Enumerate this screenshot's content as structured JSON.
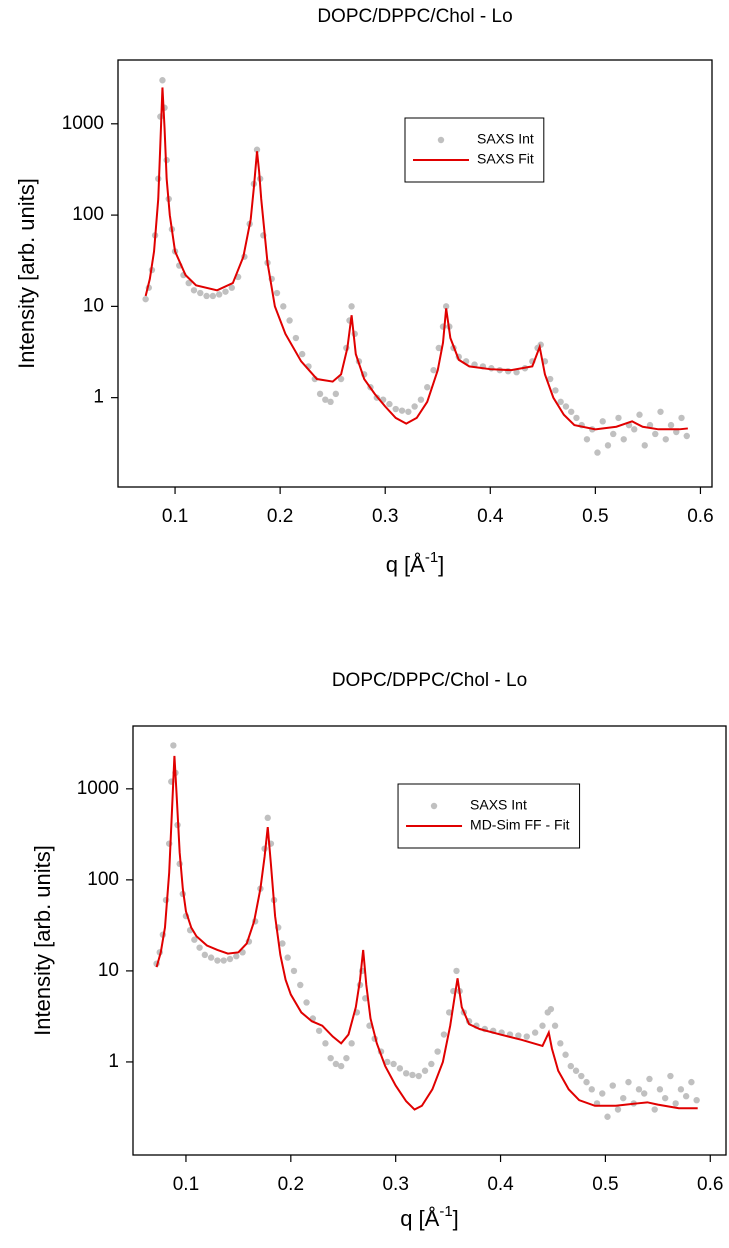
{
  "chart_data": [
    {
      "type": "scatter",
      "title": "DOPC/DPPC/Chol - Lo",
      "xlabel": [
        "q [Å",
        "-1",
        "]"
      ],
      "ylabel": "Intensity [arb. units]",
      "xlim": [
        0.0457,
        0.611
      ],
      "ylim": [
        0.105,
        5000
      ],
      "ylog": true,
      "xticks": [
        0.1,
        0.2,
        0.3,
        0.4,
        0.5,
        0.6
      ],
      "yticks": [
        1,
        10,
        100,
        1000
      ],
      "legend": "upper center",
      "series": [
        {
          "name": "SAXS Int",
          "color": "#c0c0c0",
          "mode": "markers",
          "x": [
            0.072,
            0.075,
            0.078,
            0.081,
            0.084,
            0.086,
            0.088,
            0.09,
            0.092,
            0.094,
            0.097,
            0.1,
            0.104,
            0.108,
            0.113,
            0.118,
            0.124,
            0.13,
            0.136,
            0.142,
            0.148,
            0.154,
            0.16,
            0.166,
            0.171,
            0.175,
            0.178,
            0.181,
            0.184,
            0.188,
            0.192,
            0.197,
            0.203,
            0.209,
            0.215,
            0.221,
            0.227,
            0.233,
            0.238,
            0.243,
            0.248,
            0.253,
            0.258,
            0.263,
            0.266,
            0.268,
            0.271,
            0.275,
            0.28,
            0.286,
            0.292,
            0.298,
            0.304,
            0.31,
            0.316,
            0.322,
            0.328,
            0.334,
            0.34,
            0.346,
            0.351,
            0.355,
            0.358,
            0.361,
            0.365,
            0.37,
            0.377,
            0.385,
            0.393,
            0.401,
            0.409,
            0.417,
            0.425,
            0.433,
            0.44,
            0.445,
            0.448,
            0.452,
            0.457,
            0.462,
            0.467,
            0.472,
            0.477,
            0.482,
            0.487,
            0.492,
            0.497,
            0.502,
            0.507,
            0.512,
            0.517,
            0.522,
            0.527,
            0.532,
            0.537,
            0.542,
            0.547,
            0.552,
            0.557,
            0.562,
            0.567,
            0.572,
            0.577,
            0.582,
            0.587
          ],
          "values": [
            12,
            16,
            25,
            60,
            250,
            1200,
            3000,
            1500,
            400,
            150,
            70,
            40,
            28,
            22,
            18,
            15,
            14,
            13,
            13,
            13.5,
            14.5,
            16,
            21,
            35,
            80,
            220,
            520,
            250,
            60,
            30,
            20,
            14,
            10,
            7,
            4.5,
            3,
            2.2,
            1.6,
            1.1,
            0.95,
            0.9,
            1.1,
            1.6,
            3.5,
            7,
            10,
            5,
            2.5,
            1.8,
            1.3,
            1.0,
            0.95,
            0.85,
            0.75,
            0.72,
            0.7,
            0.8,
            0.95,
            1.3,
            2,
            3.5,
            6,
            10,
            6,
            3.5,
            2.8,
            2.5,
            2.3,
            2.2,
            2.1,
            2.0,
            1.95,
            1.9,
            2.1,
            2.5,
            3.5,
            3.8,
            2.5,
            1.6,
            1.2,
            0.9,
            0.8,
            0.7,
            0.6,
            0.5,
            0.35,
            0.45,
            0.25,
            0.55,
            0.3,
            0.4,
            0.6,
            0.35,
            0.5,
            0.45,
            0.65,
            0.3,
            0.5,
            0.4,
            0.7,
            0.35,
            0.5,
            0.42,
            0.6,
            0.38
          ]
        },
        {
          "name": "SAXS Fit",
          "color": "#e00000",
          "mode": "lines",
          "x": [
            0.072,
            0.076,
            0.08,
            0.084,
            0.086,
            0.088,
            0.09,
            0.092,
            0.095,
            0.1,
            0.11,
            0.12,
            0.14,
            0.155,
            0.165,
            0.172,
            0.175,
            0.178,
            0.18,
            0.182,
            0.188,
            0.195,
            0.205,
            0.22,
            0.235,
            0.25,
            0.258,
            0.264,
            0.268,
            0.272,
            0.28,
            0.29,
            0.3,
            0.31,
            0.32,
            0.33,
            0.34,
            0.35,
            0.355,
            0.358,
            0.362,
            0.37,
            0.38,
            0.4,
            0.42,
            0.44,
            0.447,
            0.452,
            0.46,
            0.47,
            0.48,
            0.5,
            0.52,
            0.535,
            0.545,
            0.56,
            0.58,
            0.588
          ],
          "values": [
            13,
            20,
            40,
            150,
            600,
            2500,
            900,
            250,
            100,
            40,
            22,
            17,
            15,
            18,
            35,
            90,
            200,
            500,
            300,
            150,
            30,
            10,
            5,
            2.5,
            1.6,
            1.5,
            1.8,
            3.5,
            8,
            3,
            1.6,
            1.1,
            0.8,
            0.6,
            0.52,
            0.6,
            0.9,
            2,
            4,
            9.5,
            4.5,
            2.6,
            2.2,
            2.05,
            2.0,
            2.2,
            3.6,
            1.8,
            1.0,
            0.65,
            0.5,
            0.45,
            0.48,
            0.55,
            0.48,
            0.45,
            0.45,
            0.46
          ]
        }
      ]
    },
    {
      "type": "scatter",
      "title": "DOPC/DPPC/Chol - Lo",
      "xlabel": [
        "q [Å",
        "-1",
        "]"
      ],
      "ylabel": "Intensity [arb. units]",
      "xlim": [
        0.0495,
        0.615
      ],
      "ylim": [
        0.095,
        4900
      ],
      "ylog": true,
      "xticks": [
        0.1,
        0.2,
        0.3,
        0.4,
        0.5,
        0.6
      ],
      "yticks": [
        1,
        10,
        100,
        1000
      ],
      "legend": "upper center",
      "series": [
        {
          "name": "SAXS Int",
          "color": "#c0c0c0",
          "mode": "markers",
          "x": [
            0.072,
            0.075,
            0.078,
            0.081,
            0.084,
            0.086,
            0.088,
            0.09,
            0.092,
            0.094,
            0.097,
            0.1,
            0.104,
            0.108,
            0.113,
            0.118,
            0.124,
            0.13,
            0.136,
            0.142,
            0.148,
            0.154,
            0.16,
            0.166,
            0.171,
            0.175,
            0.178,
            0.181,
            0.184,
            0.188,
            0.192,
            0.197,
            0.203,
            0.209,
            0.215,
            0.221,
            0.227,
            0.233,
            0.238,
            0.243,
            0.248,
            0.253,
            0.258,
            0.263,
            0.266,
            0.268,
            0.271,
            0.275,
            0.28,
            0.286,
            0.292,
            0.298,
            0.304,
            0.31,
            0.316,
            0.322,
            0.328,
            0.334,
            0.34,
            0.346,
            0.351,
            0.355,
            0.358,
            0.361,
            0.365,
            0.37,
            0.377,
            0.385,
            0.393,
            0.401,
            0.409,
            0.417,
            0.425,
            0.433,
            0.44,
            0.445,
            0.448,
            0.452,
            0.457,
            0.462,
            0.467,
            0.472,
            0.477,
            0.482,
            0.487,
            0.492,
            0.497,
            0.502,
            0.507,
            0.512,
            0.517,
            0.522,
            0.527,
            0.532,
            0.537,
            0.542,
            0.547,
            0.552,
            0.557,
            0.562,
            0.567,
            0.572,
            0.577,
            0.582,
            0.587
          ],
          "values": [
            12,
            16,
            25,
            60,
            250,
            1200,
            3000,
            1500,
            400,
            150,
            70,
            40,
            28,
            22,
            18,
            15,
            14,
            13,
            13,
            13.5,
            14.5,
            16,
            21,
            35,
            80,
            220,
            480,
            250,
            60,
            30,
            20,
            14,
            10,
            7,
            4.5,
            3,
            2.2,
            1.6,
            1.1,
            0.95,
            0.9,
            1.1,
            1.6,
            3.5,
            7,
            10,
            5,
            2.5,
            1.8,
            1.3,
            1.0,
            0.95,
            0.85,
            0.75,
            0.72,
            0.7,
            0.8,
            0.95,
            1.3,
            2,
            3.5,
            6,
            10,
            6,
            3.5,
            2.8,
            2.5,
            2.3,
            2.2,
            2.1,
            2.0,
            1.95,
            1.9,
            2.1,
            2.5,
            3.5,
            3.8,
            2.5,
            1.6,
            1.2,
            0.9,
            0.8,
            0.7,
            0.6,
            0.5,
            0.35,
            0.45,
            0.25,
            0.55,
            0.3,
            0.4,
            0.6,
            0.35,
            0.5,
            0.45,
            0.65,
            0.3,
            0.5,
            0.4,
            0.7,
            0.35,
            0.5,
            0.42,
            0.6,
            0.38
          ]
        },
        {
          "name": "MD-Sim FF - Fit",
          "color": "#e00000",
          "mode": "lines",
          "x": [
            0.072,
            0.076,
            0.08,
            0.084,
            0.087,
            0.089,
            0.091,
            0.094,
            0.097,
            0.1,
            0.105,
            0.11,
            0.12,
            0.13,
            0.14,
            0.15,
            0.158,
            0.165,
            0.171,
            0.175,
            0.178,
            0.181,
            0.185,
            0.19,
            0.195,
            0.2,
            0.21,
            0.22,
            0.23,
            0.24,
            0.248,
            0.255,
            0.262,
            0.266,
            0.269,
            0.272,
            0.276,
            0.282,
            0.29,
            0.3,
            0.31,
            0.318,
            0.325,
            0.335,
            0.345,
            0.352,
            0.356,
            0.359,
            0.363,
            0.37,
            0.38,
            0.4,
            0.42,
            0.44,
            0.446,
            0.449,
            0.455,
            0.465,
            0.475,
            0.49,
            0.51,
            0.53,
            0.54,
            0.55,
            0.57,
            0.588
          ],
          "values": [
            11,
            16,
            30,
            120,
            700,
            2300,
            900,
            200,
            80,
            45,
            30,
            24,
            19,
            17,
            15.5,
            16,
            20,
            35,
            80,
            180,
            380,
            150,
            40,
            15,
            8,
            5.5,
            3.5,
            2.8,
            2.5,
            1.9,
            1.6,
            2,
            4,
            8,
            17,
            7,
            3,
            1.6,
            0.9,
            0.55,
            0.37,
            0.3,
            0.33,
            0.5,
            1.0,
            2.5,
            5,
            8.3,
            4,
            2.6,
            2.3,
            2.0,
            1.75,
            1.5,
            2.1,
            1.4,
            0.8,
            0.5,
            0.38,
            0.33,
            0.33,
            0.35,
            0.36,
            0.34,
            0.31,
            0.31
          ]
        }
      ]
    }
  ]
}
